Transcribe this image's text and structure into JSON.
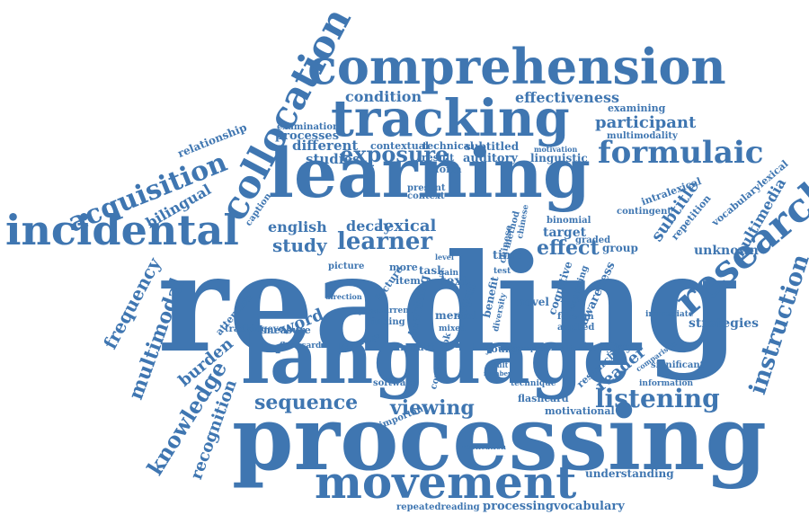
{
  "cloud": {
    "color": "#3f76b1",
    "words": [
      "reading",
      "processing",
      "language",
      "learning",
      "comprehension",
      "tracking",
      "incidental",
      "collocation",
      "research",
      "movement",
      "acquisition",
      "formulaic",
      "listening",
      "exposure",
      "learner",
      "sequence",
      "instruction",
      "viewing",
      "knowledge",
      "multimodal",
      "frequency",
      "effect",
      "study",
      "word",
      "english",
      "lexical",
      "decay",
      "recognition",
      "burden",
      "subtitle",
      "reader",
      "condition",
      "effectiveness",
      "participant",
      "multimedia",
      "unknown",
      "strategies",
      "bilingual",
      "relationship",
      "caption",
      "different",
      "studies",
      "auditory",
      "subtitled",
      "linguistic",
      "examination",
      "processes",
      "contextual",
      "technical",
      "examining",
      "multimodality",
      "intralexical",
      "vocabularylexical",
      "contingent",
      "binomial",
      "target",
      "repetition",
      "attention",
      "trackingeye",
      "measure",
      "picture",
      "teaching",
      "input",
      "text",
      "novel",
      "mental",
      "cognitive",
      "awareness",
      "imagery",
      "researcher",
      "significant",
      "flashcard",
      "motivational",
      "understanding",
      "repeatedreading",
      "processingvocabulary",
      "software",
      "important",
      "impact",
      "young",
      "coursebook",
      "time",
      "task",
      "more",
      "item",
      "form",
      "present",
      "context",
      "result",
      "current",
      "finding",
      "method",
      "graded",
      "group",
      "chinese",
      "foreign",
      "applied",
      "technique",
      "information",
      "immediate",
      "comparison",
      "replication",
      "diversity",
      "benefit",
      "exploring",
      "mixed",
      "flashcards",
      "advantage",
      "lecture",
      "motivation",
      "chinese",
      "level",
      "adult",
      "number",
      "classroom",
      "presentation",
      "test",
      "gain",
      "special",
      "direction"
    ]
  }
}
